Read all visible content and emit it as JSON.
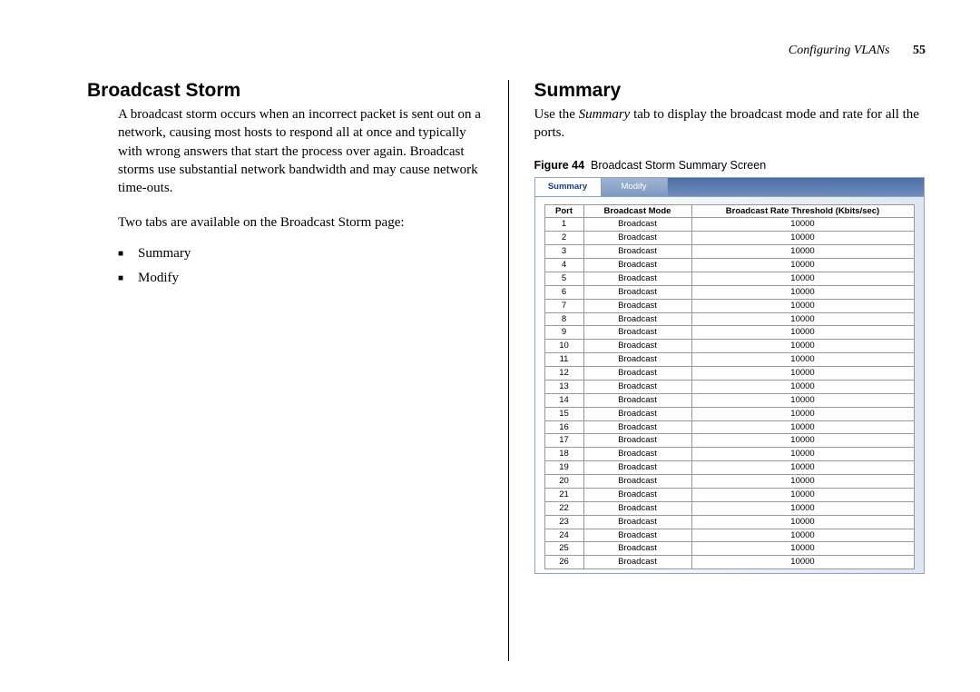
{
  "header": {
    "running": "Configuring VLANs",
    "page": "55"
  },
  "left": {
    "heading": "Broadcast Storm",
    "para1": "A broadcast storm occurs when an incorrect packet is sent out on a network, causing most hosts to respond all at once and typically with wrong answers that start the process over again. Broadcast storms use substantial network bandwidth and may cause network time-outs.",
    "para2": "Two tabs are available on the Broadcast Storm page:",
    "bullets": [
      "Summary",
      "Modify"
    ]
  },
  "right": {
    "heading": "Summary",
    "para_pre": "Use the ",
    "para_em": "Summary",
    "para_post": " tab to display the broadcast mode and rate for all the ports.",
    "figure": {
      "label": "Figure 44",
      "caption": "Broadcast Storm Summary Screen"
    },
    "tabs": {
      "active": "Summary",
      "inactive": "Modify"
    },
    "table": {
      "columns": [
        "Port",
        "Broadcast Mode",
        "Broadcast Rate Threshold (Kbits/sec)"
      ],
      "rows": [
        [
          "1",
          "Broadcast",
          "10000"
        ],
        [
          "2",
          "Broadcast",
          "10000"
        ],
        [
          "3",
          "Broadcast",
          "10000"
        ],
        [
          "4",
          "Broadcast",
          "10000"
        ],
        [
          "5",
          "Broadcast",
          "10000"
        ],
        [
          "6",
          "Broadcast",
          "10000"
        ],
        [
          "7",
          "Broadcast",
          "10000"
        ],
        [
          "8",
          "Broadcast",
          "10000"
        ],
        [
          "9",
          "Broadcast",
          "10000"
        ],
        [
          "10",
          "Broadcast",
          "10000"
        ],
        [
          "11",
          "Broadcast",
          "10000"
        ],
        [
          "12",
          "Broadcast",
          "10000"
        ],
        [
          "13",
          "Broadcast",
          "10000"
        ],
        [
          "14",
          "Broadcast",
          "10000"
        ],
        [
          "15",
          "Broadcast",
          "10000"
        ],
        [
          "16",
          "Broadcast",
          "10000"
        ],
        [
          "17",
          "Broadcast",
          "10000"
        ],
        [
          "18",
          "Broadcast",
          "10000"
        ],
        [
          "19",
          "Broadcast",
          "10000"
        ],
        [
          "20",
          "Broadcast",
          "10000"
        ],
        [
          "21",
          "Broadcast",
          "10000"
        ],
        [
          "22",
          "Broadcast",
          "10000"
        ],
        [
          "23",
          "Broadcast",
          "10000"
        ],
        [
          "24",
          "Broadcast",
          "10000"
        ],
        [
          "25",
          "Broadcast",
          "10000"
        ],
        [
          "26",
          "Broadcast",
          "10000"
        ]
      ]
    }
  }
}
